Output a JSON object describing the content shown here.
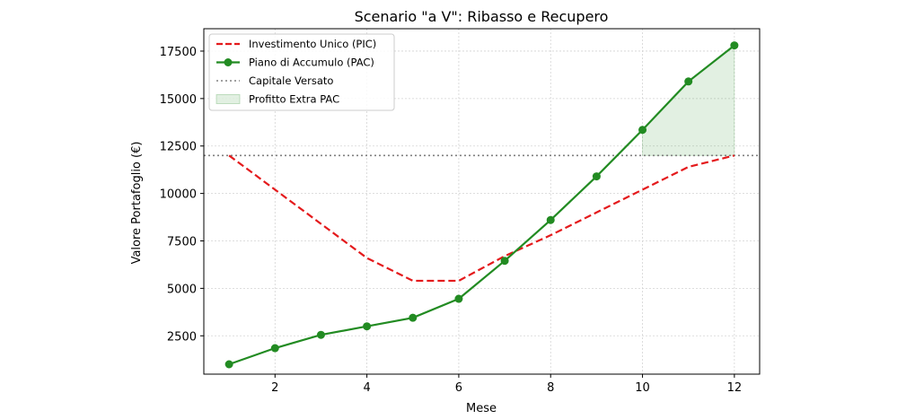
{
  "chart_data": {
    "type": "line",
    "title": "Scenario \"a V\": Ribasso e Recupero",
    "xlabel": "Mese",
    "ylabel": "Valore Portafoglio (€)",
    "xlim": [
      0.45,
      12.55
    ],
    "ylim": [
      480,
      18680
    ],
    "xticks": [
      2,
      4,
      6,
      8,
      10,
      12
    ],
    "yticks": [
      2500,
      5000,
      7500,
      10000,
      12500,
      15000,
      17500
    ],
    "grid": true,
    "legend_position": "upper-left",
    "x": [
      1,
      2,
      3,
      4,
      5,
      6,
      7,
      8,
      9,
      10,
      11,
      12
    ],
    "series": [
      {
        "name": "Investimento Unico (PIC)",
        "style": "dashed",
        "color": "#e41a1c",
        "values": [
          12000,
          10200,
          8400,
          6600,
          5400,
          5400,
          6700,
          7800,
          9000,
          10200,
          11400,
          12000
        ]
      },
      {
        "name": "Piano di Accumulo (PAC)",
        "style": "solid-marker",
        "color": "#228b22",
        "values": [
          1000,
          1850,
          2550,
          3000,
          3450,
          4450,
          6450,
          8600,
          10900,
          13350,
          15900,
          17800
        ]
      }
    ],
    "reference_line": {
      "name": "Capitale Versato",
      "value": 12000,
      "style": "dotted",
      "color": "#808080"
    },
    "fill_region": {
      "name": "Profitto Extra PAC",
      "x": [
        10,
        11,
        12
      ],
      "upper": [
        13350,
        15900,
        17800
      ],
      "lower": 12000,
      "color": "#228b22"
    }
  }
}
